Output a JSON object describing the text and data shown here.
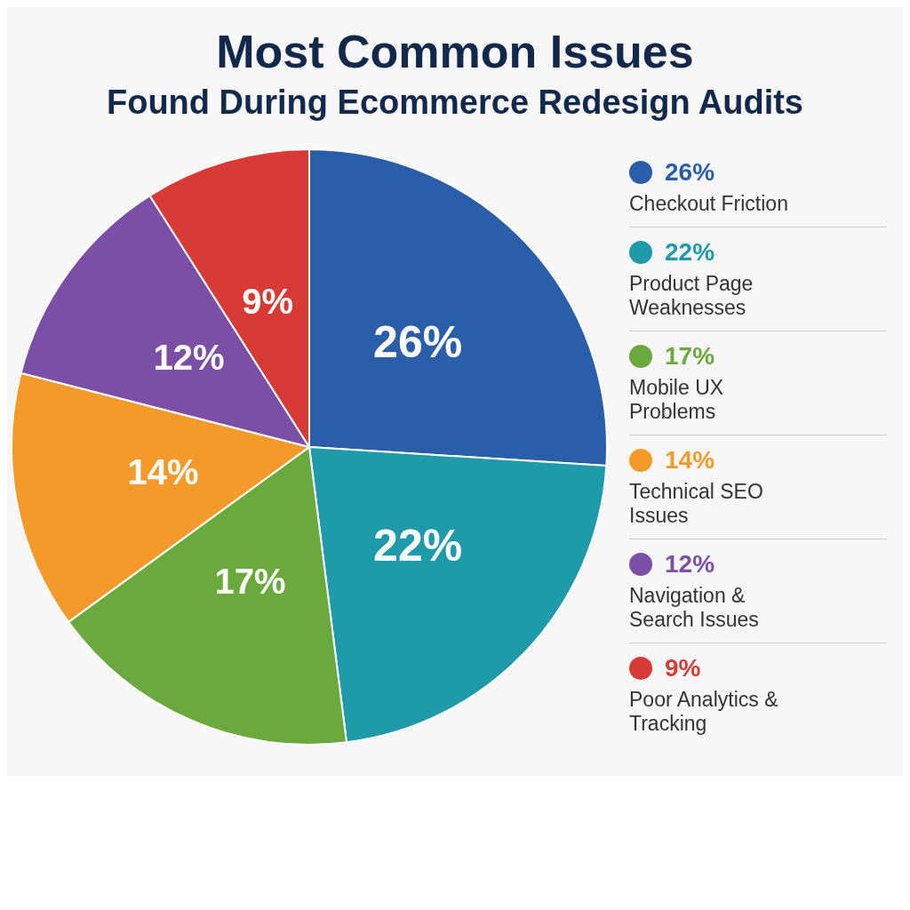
{
  "chart_data": {
    "type": "pie",
    "title": "Most Common Issues",
    "subtitle": "Found During Ecommerce Redesign Audits",
    "categories": [
      "Checkout Friction",
      "Product Page Weaknesses",
      "Mobile UX Problems",
      "Technical SEO Issues",
      "Navigation & Search Issues",
      "Poor Analytics & Tracking"
    ],
    "values": [
      26,
      22,
      17,
      14,
      12,
      9
    ],
    "value_labels": [
      "26%",
      "22%",
      "17%",
      "14%",
      "12%",
      "9%"
    ],
    "colors": [
      "#2a5ea8",
      "#1f9aab",
      "#6aaa3c",
      "#f39a2a",
      "#7b4fa6",
      "#d83a35"
    ],
    "legend": "right"
  }
}
